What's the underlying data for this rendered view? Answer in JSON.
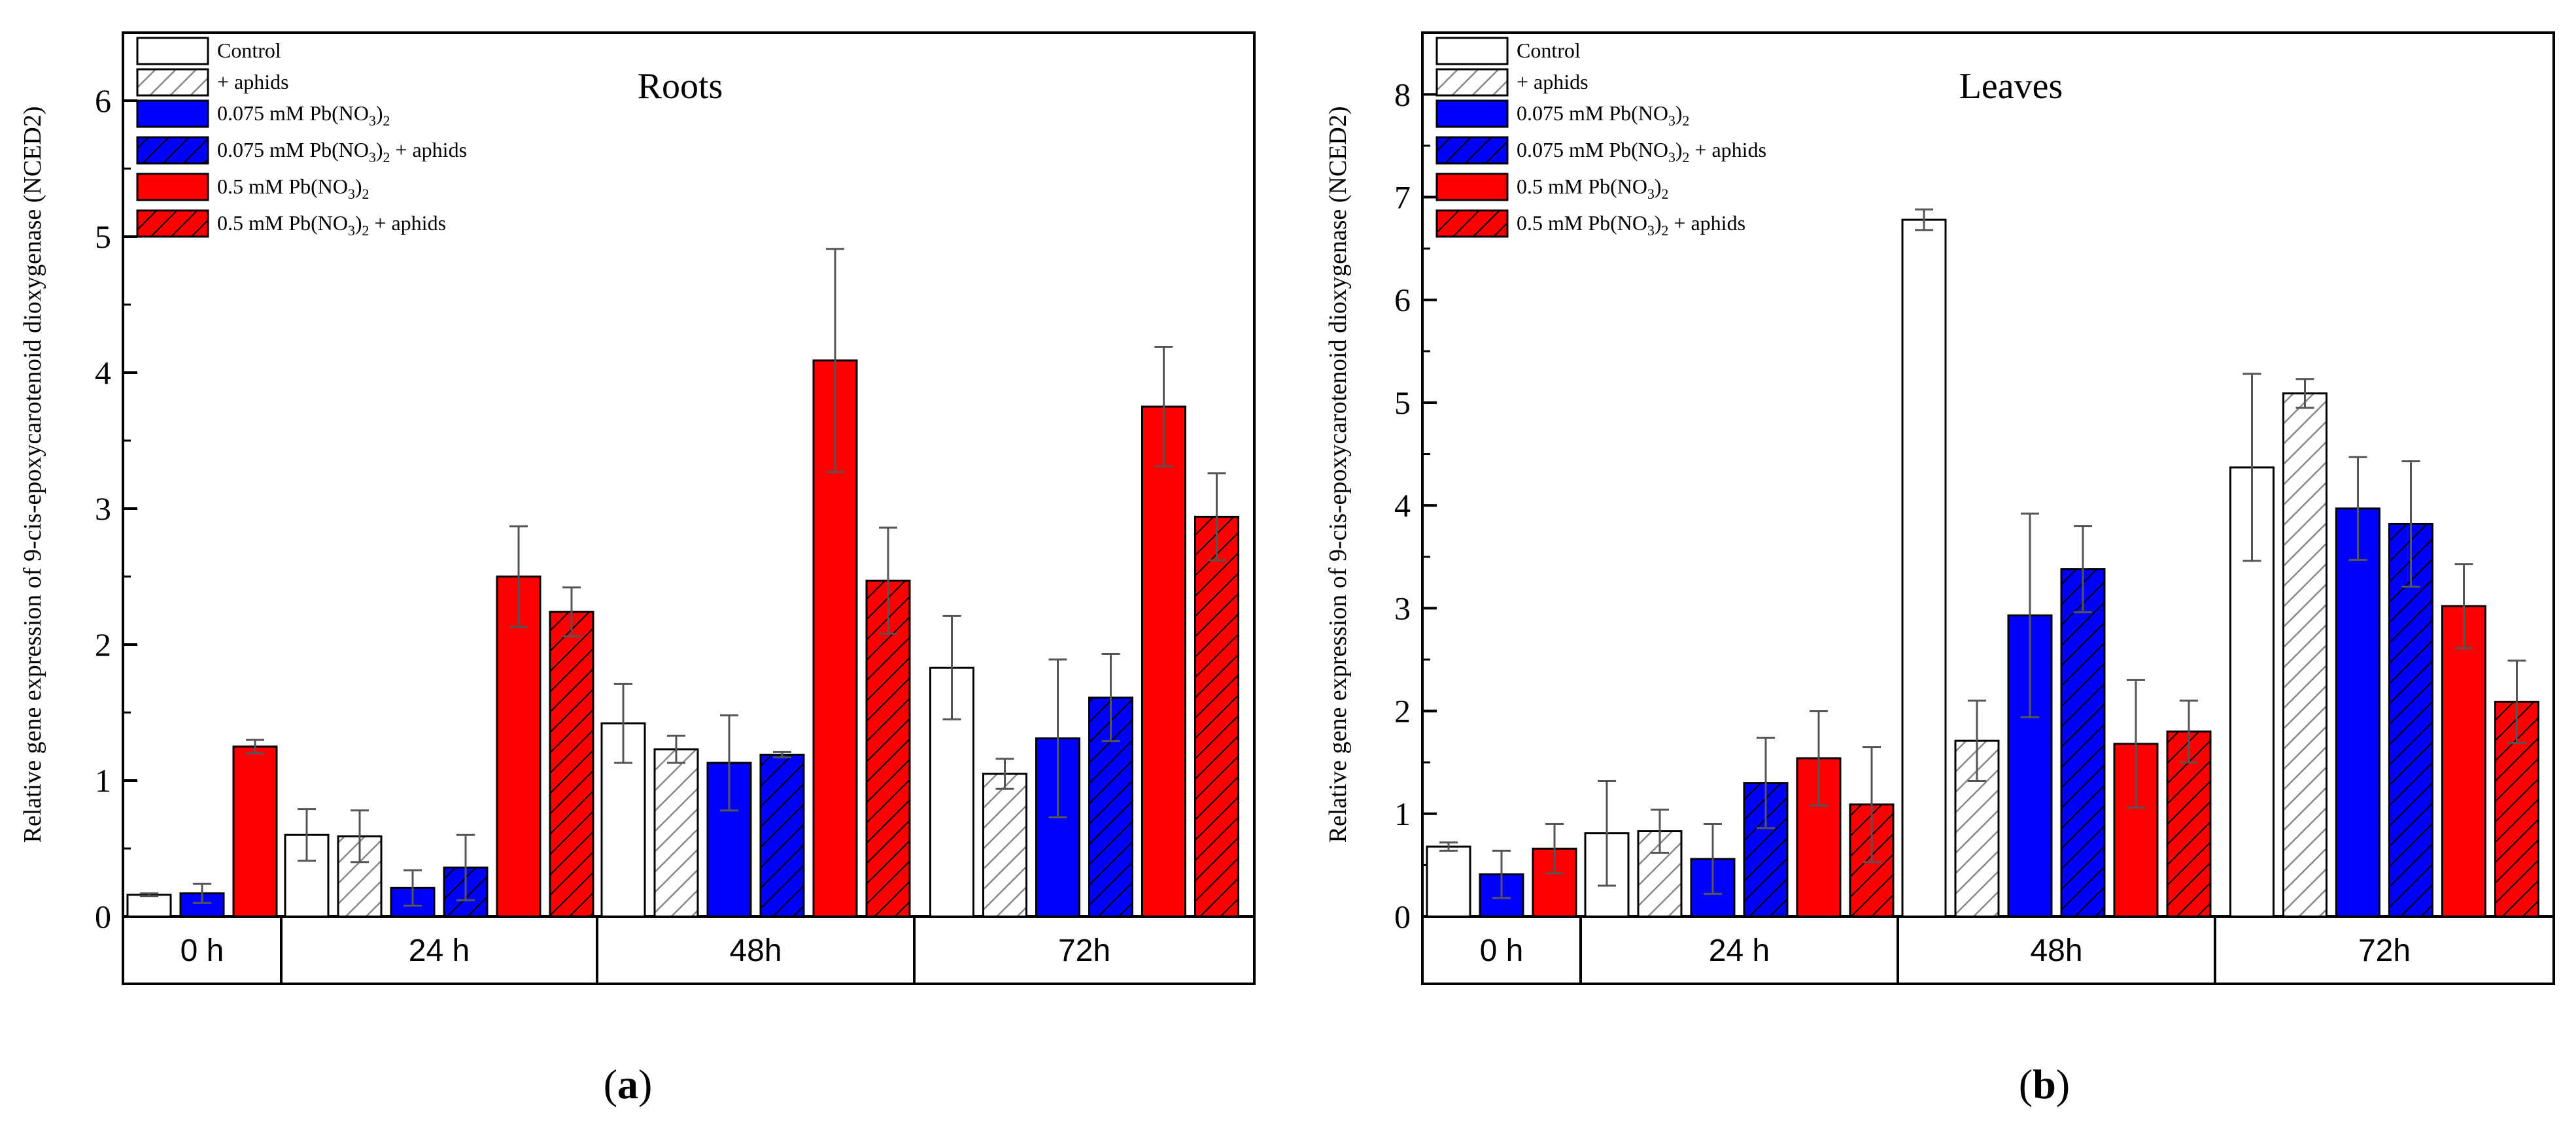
{
  "chart_data": [
    {
      "type": "bar",
      "panel_label": "a",
      "title": "Roots",
      "ylabel": "Relative gene expression of 9-cis-epoxycarotenoid dioxygenase (NCED2)",
      "ylim": [
        0,
        6.5
      ],
      "yticks": [
        "0",
        "1",
        "2",
        "3",
        "4",
        "5",
        "6"
      ],
      "grid": false,
      "legend_position": "top-left",
      "groups": [
        {
          "label": "0 h",
          "bars": [
            {
              "series": 0,
              "value": 0.16,
              "error": 0.01
            },
            {
              "series": 2,
              "value": 0.17,
              "error": 0.07
            },
            {
              "series": 4,
              "value": 1.25,
              "error": 0.05
            }
          ]
        },
        {
          "label": "24 h",
          "bars": [
            {
              "series": 0,
              "value": 0.6,
              "error": 0.19
            },
            {
              "series": 1,
              "value": 0.59,
              "error": 0.19
            },
            {
              "series": 2,
              "value": 0.21,
              "error": 0.13
            },
            {
              "series": 3,
              "value": 0.36,
              "error": 0.24
            },
            {
              "series": 4,
              "value": 2.5,
              "error": 0.37
            },
            {
              "series": 5,
              "value": 2.24,
              "error": 0.18
            }
          ]
        },
        {
          "label": "48h",
          "bars": [
            {
              "series": 0,
              "value": 1.42,
              "error": 0.29
            },
            {
              "series": 1,
              "value": 1.23,
              "error": 0.1
            },
            {
              "series": 2,
              "value": 1.13,
              "error": 0.35
            },
            {
              "series": 3,
              "value": 1.19,
              "error": 0.02
            },
            {
              "series": 4,
              "value": 4.09,
              "error": 0.82
            },
            {
              "series": 5,
              "value": 2.47,
              "error": 0.39
            }
          ]
        },
        {
          "label": "72h",
          "bars": [
            {
              "series": 0,
              "value": 1.83,
              "error": 0.38
            },
            {
              "series": 1,
              "value": 1.05,
              "error": 0.11
            },
            {
              "series": 2,
              "value": 1.31,
              "error": 0.58
            },
            {
              "series": 3,
              "value": 1.61,
              "error": 0.32
            },
            {
              "series": 4,
              "value": 3.75,
              "error": 0.44
            },
            {
              "series": 5,
              "value": 2.94,
              "error": 0.32
            }
          ]
        }
      ]
    },
    {
      "type": "bar",
      "panel_label": "b",
      "title": "Leaves",
      "ylabel": "Relative gene expression of 9-cis-epoxycarotenoid dioxygenase (NCED2)",
      "ylim": [
        0,
        8.6
      ],
      "yticks": [
        "0",
        "1",
        "2",
        "3",
        "4",
        "5",
        "6",
        "7",
        "8"
      ],
      "grid": false,
      "legend_position": "top-left",
      "groups": [
        {
          "label": "0 h",
          "bars": [
            {
              "series": 0,
              "value": 0.68,
              "error": 0.04
            },
            {
              "series": 2,
              "value": 0.41,
              "error": 0.23
            },
            {
              "series": 4,
              "value": 0.66,
              "error": 0.24
            }
          ]
        },
        {
          "label": "24 h",
          "bars": [
            {
              "series": 0,
              "value": 0.81,
              "error": 0.51
            },
            {
              "series": 1,
              "value": 0.83,
              "error": 0.21
            },
            {
              "series": 2,
              "value": 0.56,
              "error": 0.34
            },
            {
              "series": 3,
              "value": 1.3,
              "error": 0.44
            },
            {
              "series": 4,
              "value": 1.54,
              "error": 0.46
            },
            {
              "series": 5,
              "value": 1.09,
              "error": 0.56
            }
          ]
        },
        {
          "label": "48h",
          "bars": [
            {
              "series": 0,
              "value": 6.78,
              "error": 0.1
            },
            {
              "series": 1,
              "value": 1.71,
              "error": 0.39
            },
            {
              "series": 2,
              "value": 2.93,
              "error": 0.99
            },
            {
              "series": 3,
              "value": 3.38,
              "error": 0.42
            },
            {
              "series": 4,
              "value": 1.68,
              "error": 0.62
            },
            {
              "series": 5,
              "value": 1.8,
              "error": 0.3
            }
          ]
        },
        {
          "label": "72h",
          "bars": [
            {
              "series": 0,
              "value": 4.37,
              "error": 0.91
            },
            {
              "series": 1,
              "value": 5.09,
              "error": 0.14
            },
            {
              "series": 2,
              "value": 3.97,
              "error": 0.5
            },
            {
              "series": 3,
              "value": 3.82,
              "error": 0.61
            },
            {
              "series": 4,
              "value": 3.02,
              "error": 0.41
            },
            {
              "series": 5,
              "value": 2.09,
              "error": 0.4
            }
          ]
        }
      ]
    }
  ],
  "series": [
    {
      "name": "Control",
      "color": "#ffffff",
      "hatched": false
    },
    {
      "name": "+ aphids",
      "color": "#ffffff",
      "hatched": true,
      "hatch_color": "#888888"
    },
    {
      "name": "0.075 mM Pb(NO3)2",
      "color": "#0000ff",
      "hatched": false
    },
    {
      "name": "0.075 mM Pb(NO3)2 + aphids",
      "color": "#0000ff",
      "hatched": true,
      "hatch_color": "#000000"
    },
    {
      "name": "0.5 mM Pb(NO3)2",
      "color": "#ff0000",
      "hatched": false
    },
    {
      "name": "0.5 mM Pb(NO3)2 + aphids",
      "color": "#ff0000",
      "hatched": true,
      "hatch_color": "#000000"
    }
  ]
}
